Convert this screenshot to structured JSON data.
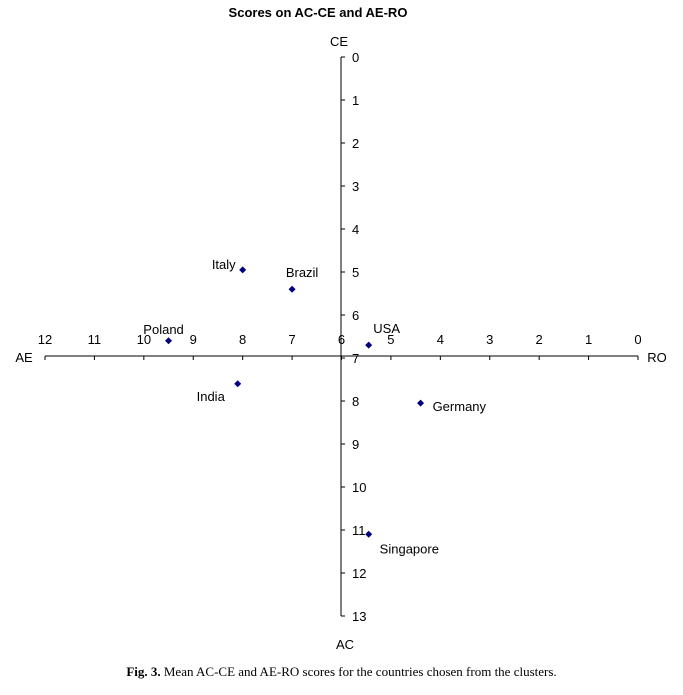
{
  "caption": {
    "figure_label": "Fig. 3.",
    "text": "Mean AC-CE and AE-RO scores for the countries chosen from the clusters."
  },
  "chart_data": {
    "type": "scatter",
    "title": "Scores on AC-CE and AE-RO",
    "axes": {
      "vertical": {
        "top_label": "CE",
        "bottom_label": "AC",
        "range": [
          0,
          13
        ],
        "ticks": [
          0,
          1,
          2,
          3,
          4,
          5,
          6,
          7,
          8,
          9,
          10,
          11,
          12,
          13
        ],
        "inverted": true
      },
      "horizontal": {
        "left_label": "AE",
        "right_label": "RO",
        "range": [
          12,
          0
        ],
        "ticks": [
          12,
          11,
          10,
          9,
          8,
          7,
          6,
          5,
          4,
          3,
          2,
          1,
          0
        ],
        "reversed": true
      }
    },
    "grid": false,
    "legend": "none",
    "marker_color": "#000080",
    "marker": "diamond",
    "points": [
      {
        "label": "Italy",
        "x": 8.0,
        "y": 4.95
      },
      {
        "label": "Brazil",
        "x": 7.0,
        "y": 5.4
      },
      {
        "label": "Poland",
        "x": 9.5,
        "y": 6.6
      },
      {
        "label": "USA",
        "x": 5.45,
        "y": 6.7
      },
      {
        "label": "India",
        "x": 8.1,
        "y": 7.6
      },
      {
        "label": "Germany",
        "x": 4.4,
        "y": 8.05
      },
      {
        "label": "Singapore",
        "x": 5.45,
        "y": 11.1
      }
    ]
  }
}
